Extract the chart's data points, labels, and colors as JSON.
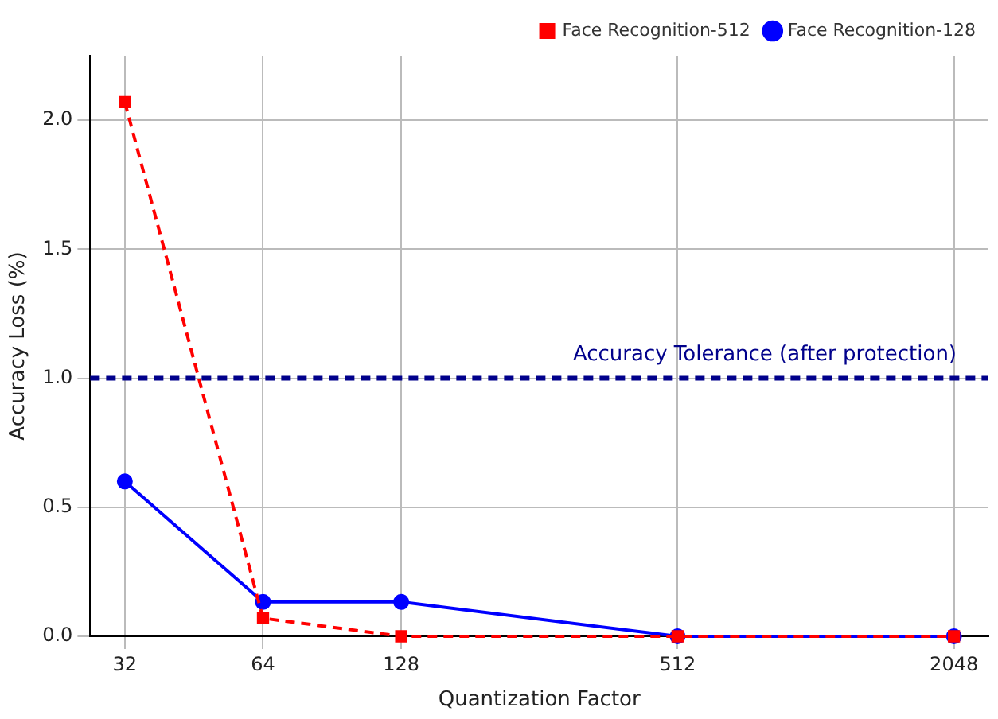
{
  "chart_data": {
    "type": "line",
    "xlabel": "Quantization Factor",
    "ylabel": "Accuracy Loss (%)",
    "x": [
      32,
      64,
      128,
      512,
      2048
    ],
    "series": [
      {
        "name": "Face Recognition-512",
        "color": "#ff0000",
        "values": [
          2.07,
          0.07,
          0,
          0,
          0
        ],
        "marker": "square",
        "line_style": "dashed"
      },
      {
        "name": "Face Recognition-128",
        "color": "#0000ff",
        "values": [
          0.6,
          0.133,
          0.133,
          0,
          0
        ],
        "marker": "circle",
        "line_style": "solid"
      }
    ],
    "log": "x",
    "xlim": [
      26.9,
      2435
    ],
    "xticks": [
      32,
      64,
      128,
      512,
      2048
    ],
    "ylim": [
      0,
      2.25
    ],
    "yticks": [
      {
        "value": 0,
        "label": "0.0"
      },
      {
        "value": 0.5,
        "label": "0.5"
      },
      {
        "value": 1,
        "label": "1.0"
      },
      {
        "value": 1.5,
        "label": "1.5"
      },
      {
        "value": 2,
        "label": "2.0"
      }
    ],
    "ref_lines": [
      {
        "axis": "y",
        "value": 1,
        "label": "Accuracy Tolerance (after protection)",
        "color": "#00008b",
        "line_style": "dashed"
      }
    ],
    "grid": true,
    "legend": "top right"
  }
}
